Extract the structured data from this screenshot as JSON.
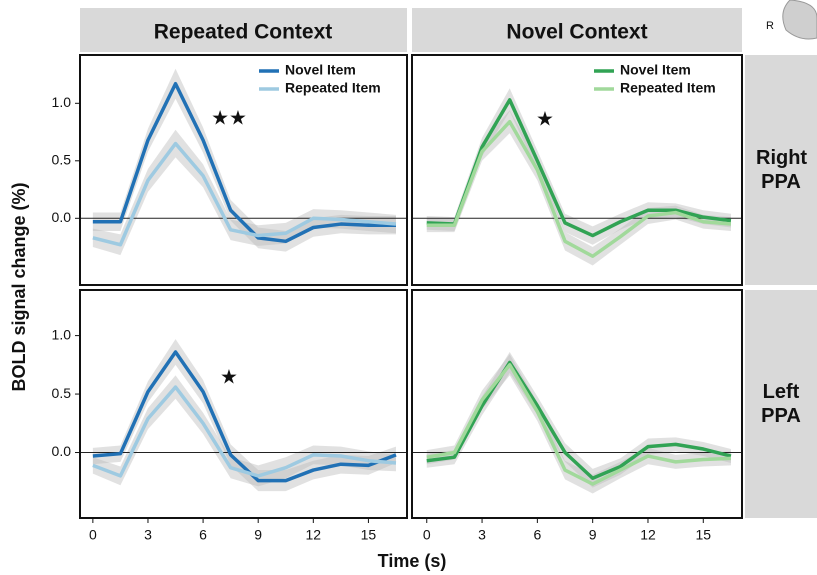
{
  "column_titles": [
    "Repeated Context",
    "Novel Context"
  ],
  "row_titles": [
    "Right PPA",
    "Left PPA"
  ],
  "ylabel": "BOLD signal change (%)",
  "xlabel": "Time (s)",
  "brain_label": "R",
  "chart_data": [
    {
      "type": "line",
      "x": [
        0,
        1.5,
        3,
        4.5,
        6,
        7.5,
        9,
        10.5,
        12,
        13.5,
        15,
        16.5
      ],
      "xlim": [
        -0.7,
        17.1
      ],
      "ylim": [
        -0.58,
        1.42
      ],
      "yticks": [
        {
          "value": 0,
          "label": "0.0"
        },
        {
          "value": 0.5,
          "label": "0.5"
        },
        {
          "value": 1,
          "label": "1.0"
        }
      ],
      "hline": 0,
      "legend": "upper right",
      "annotation": "★★",
      "series": [
        {
          "name": "Novel Item",
          "color": "#2171b5",
          "values": [
            -0.03,
            -0.03,
            0.68,
            1.17,
            0.68,
            0.07,
            -0.17,
            -0.2,
            -0.08,
            -0.05,
            -0.06,
            -0.06
          ],
          "errors": [
            0.08,
            0.08,
            0.1,
            0.13,
            0.11,
            0.09,
            0.09,
            0.09,
            0.08,
            0.08,
            0.08,
            0.08
          ]
        },
        {
          "name": "Repeated Item",
          "color": "#9ecae1",
          "values": [
            -0.17,
            -0.23,
            0.33,
            0.65,
            0.37,
            -0.1,
            -0.15,
            -0.13,
            0.0,
            -0.01,
            -0.03,
            -0.05
          ],
          "errors": [
            0.08,
            0.09,
            0.1,
            0.12,
            0.1,
            0.09,
            0.09,
            0.09,
            0.08,
            0.08,
            0.08,
            0.08
          ]
        }
      ]
    },
    {
      "type": "line",
      "x": [
        0,
        1.5,
        3,
        4.5,
        6,
        7.5,
        9,
        10.5,
        12,
        13.5,
        15,
        16.5
      ],
      "xlim": [
        -0.8,
        17.1
      ],
      "ylim": [
        -0.58,
        1.42
      ],
      "hline": 0,
      "legend": "upper right",
      "annotation": "★",
      "series": [
        {
          "name": "Novel Item",
          "color": "#31a354",
          "values": [
            -0.04,
            -0.05,
            0.62,
            1.03,
            0.5,
            -0.04,
            -0.15,
            -0.03,
            0.07,
            0.07,
            0.01,
            -0.02
          ],
          "errors": [
            0.06,
            0.06,
            0.08,
            0.1,
            0.09,
            0.08,
            0.08,
            0.07,
            0.07,
            0.06,
            0.06,
            0.06
          ]
        },
        {
          "name": "Repeated Item",
          "color": "#a1d99b",
          "values": [
            -0.06,
            -0.06,
            0.58,
            0.84,
            0.42,
            -0.2,
            -0.33,
            -0.16,
            0.02,
            0.05,
            -0.03,
            -0.05
          ],
          "errors": [
            0.06,
            0.06,
            0.08,
            0.1,
            0.09,
            0.08,
            0.08,
            0.07,
            0.07,
            0.06,
            0.06,
            0.06
          ]
        }
      ]
    },
    {
      "type": "line",
      "x": [
        0,
        1.5,
        3,
        4.5,
        6,
        7.5,
        9,
        10.5,
        12,
        13.5,
        15,
        16.5
      ],
      "xlim": [
        -0.7,
        17.1
      ],
      "ylim": [
        -0.56,
        1.39
      ],
      "xticks": [
        0,
        3,
        6,
        9,
        12,
        15
      ],
      "yticks": [
        {
          "value": 0,
          "label": "0.0"
        },
        {
          "value": 0.5,
          "label": "0.5"
        },
        {
          "value": 1,
          "label": "1.0"
        }
      ],
      "hline": 0,
      "annotation": "★",
      "series": [
        {
          "color": "#2171b5",
          "values": [
            -0.03,
            -0.01,
            0.52,
            0.86,
            0.52,
            -0.02,
            -0.24,
            -0.24,
            -0.15,
            -0.1,
            -0.11,
            -0.02
          ],
          "errors": [
            0.07,
            0.07,
            0.09,
            0.11,
            0.1,
            0.09,
            0.09,
            0.09,
            0.08,
            0.08,
            0.08,
            0.07
          ]
        },
        {
          "color": "#9ecae1",
          "values": [
            -0.11,
            -0.2,
            0.29,
            0.56,
            0.25,
            -0.13,
            -0.2,
            -0.13,
            -0.02,
            -0.03,
            -0.07,
            -0.09
          ],
          "errors": [
            0.07,
            0.08,
            0.09,
            0.1,
            0.09,
            0.09,
            0.09,
            0.09,
            0.08,
            0.08,
            0.08,
            0.07
          ]
        }
      ]
    },
    {
      "type": "line",
      "x": [
        0,
        1.5,
        3,
        4.5,
        6,
        7.5,
        9,
        10.5,
        12,
        13.5,
        15,
        16.5
      ],
      "xlim": [
        -0.8,
        17.1
      ],
      "ylim": [
        -0.56,
        1.39
      ],
      "xticks": [
        0,
        3,
        6,
        9,
        12,
        15
      ],
      "hline": 0,
      "series": [
        {
          "color": "#31a354",
          "values": [
            -0.07,
            -0.04,
            0.4,
            0.77,
            0.4,
            0.0,
            -0.22,
            -0.12,
            0.05,
            0.07,
            0.03,
            -0.03
          ],
          "errors": [
            0.06,
            0.06,
            0.08,
            0.09,
            0.08,
            0.08,
            0.08,
            0.07,
            0.07,
            0.06,
            0.06,
            0.06
          ]
        },
        {
          "color": "#a1d99b",
          "values": [
            -0.04,
            0.0,
            0.45,
            0.75,
            0.35,
            -0.15,
            -0.27,
            -0.15,
            -0.03,
            -0.08,
            -0.06,
            -0.05
          ],
          "errors": [
            0.06,
            0.06,
            0.08,
            0.09,
            0.08,
            0.08,
            0.08,
            0.07,
            0.07,
            0.06,
            0.06,
            0.06
          ]
        }
      ]
    }
  ]
}
